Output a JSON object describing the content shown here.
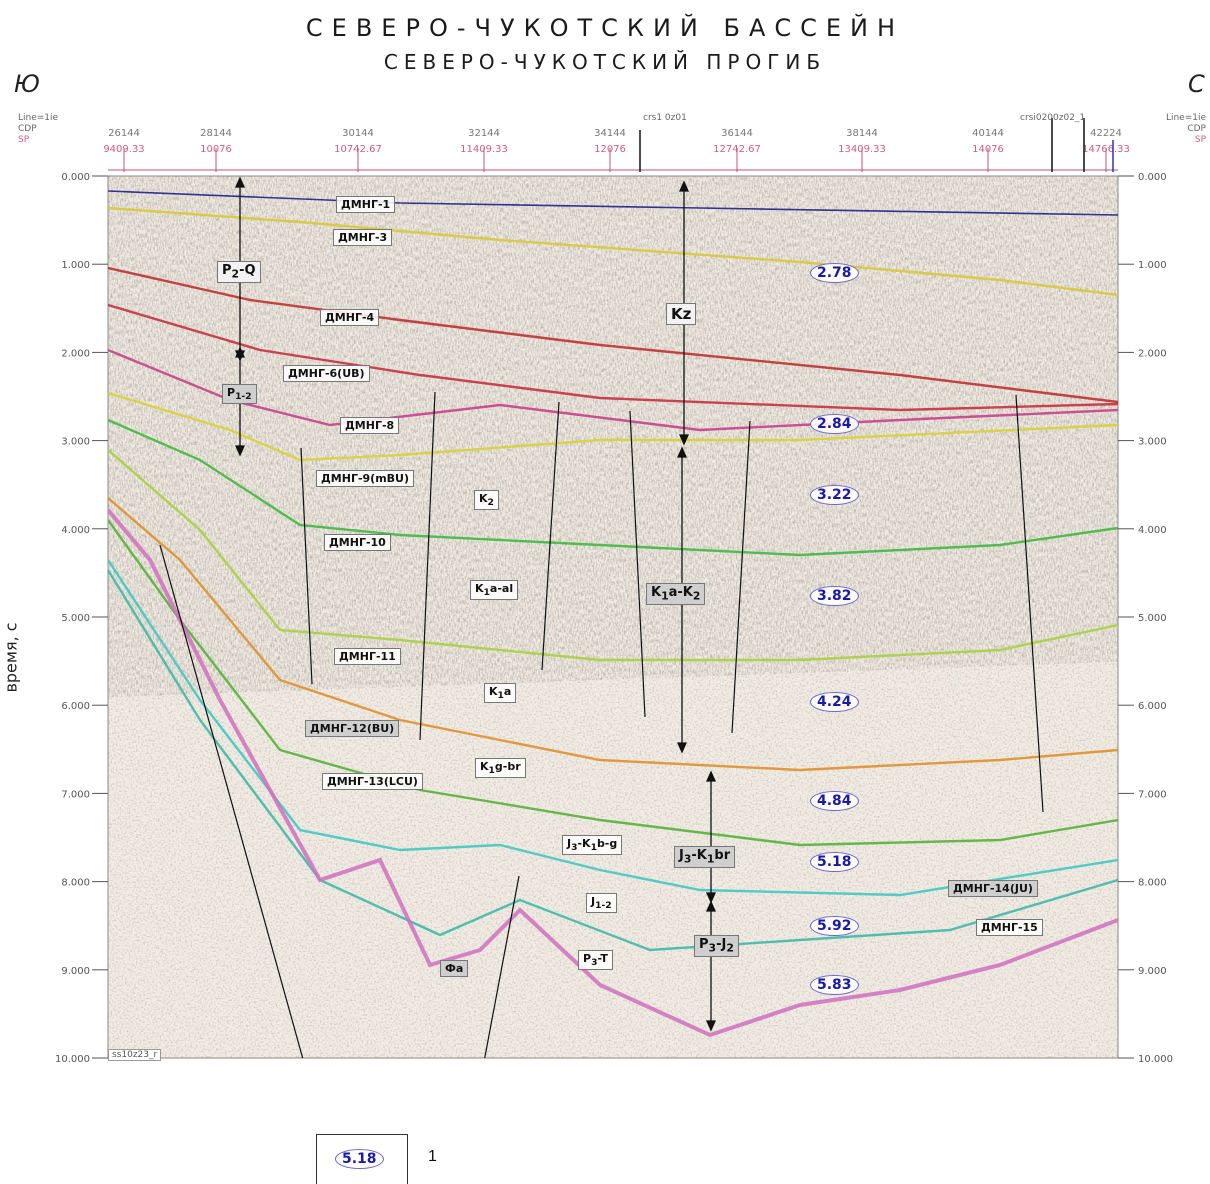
{
  "title": "СЕВЕРО-ЧУКОТСКИЙ  БАССЕЙН",
  "subtitle": "СЕВЕРО-ЧУКОТСКИЙ  ПРОГИБ",
  "dir_left": "Ю",
  "dir_right": "С",
  "ylabel": "время, с",
  "header_row_labels": {
    "left": [
      "Line=1ie",
      "CDP",
      "SP"
    ],
    "right": [
      "Line=1ie",
      "CDP",
      "SP"
    ]
  },
  "line_markers": [
    "crs1 0z01",
    "crsi0200z02_1"
  ],
  "cdp_ticks": [
    "26144",
    "28144",
    "30144",
    "32144",
    "34144",
    "36144",
    "38144",
    "40144",
    "42224"
  ],
  "sp_ticks": [
    "9409.33",
    "10076",
    "10742.67",
    "11409.33",
    "12076",
    "12742.67",
    "13409.33",
    "14076",
    "14766.33"
  ],
  "time_ticks": [
    "0.000",
    "1.000",
    "2.000",
    "3.000",
    "4.000",
    "5.000",
    "6.000",
    "7.000",
    "8.000",
    "9.000",
    "10.000"
  ],
  "horizons": [
    {
      "name": "ДМНГ-1",
      "color": "#1e1e8c"
    },
    {
      "name": "ДМНГ-3",
      "color": "#d8c838"
    },
    {
      "name": "ДМНГ-4",
      "color": "#c03030"
    },
    {
      "name": "ДМНГ-6(UB)",
      "color": "#c83040"
    },
    {
      "name": "ДМНГ-8",
      "color": "#c8408c"
    },
    {
      "name": "ДМНГ-9(mBU)",
      "color": "#d8d038"
    },
    {
      "name": "ДМНГ-10",
      "color": "#40b840"
    },
    {
      "name": "ДМНГ-11",
      "color": "#a8d040"
    },
    {
      "name": "ДМНГ-12(BU)",
      "color": "#e0902c"
    },
    {
      "name": "ДМНГ-13(LCU)",
      "color": "#58b038"
    },
    {
      "name": "ДМНГ-14(JU)",
      "color": "#40c8c0"
    },
    {
      "name": "ДМНГ-15",
      "color": "#40b8a8"
    }
  ],
  "basement_color": "#d070c0",
  "units": {
    "p2q_main": "P",
    "p2q_sub": "2",
    "p2q_tail": "-Q",
    "p12_main": "P",
    "p12_sub": "1-2",
    "kz": "Kz",
    "k2_main": "K",
    "k2_sub": "2",
    "k1aal_main": "K",
    "k1aal_sub": "1",
    "k1aal_tail": "a-al",
    "k1ak2_main": "K",
    "k1ak2_sub": "1",
    "k1ak2_mid": "a-K",
    "k1ak2_sub2": "2",
    "k1a_main": "K",
    "k1a_sub": "1",
    "k1a_tail": "a",
    "k1gbr_main": "K",
    "k1gbr_sub": "1",
    "k1gbr_tail": "g-br",
    "j3k1bg_main": "J",
    "j3k1bg_sub": "3",
    "j3k1bg_mid": "-K",
    "j3k1bg_sub2": "1",
    "j3k1bg_tail": "b-g",
    "j3k1br_main": "J",
    "j3k1br_sub": "3",
    "j3k1br_mid": "-K",
    "j3k1br_sub2": "1",
    "j3k1br_tail": "br",
    "j12_main": "J",
    "j12_sub": "1-2",
    "p3t_main": "P",
    "p3t_sub": "3",
    "p3t_tail": "-T",
    "p3j2_main": "P",
    "p3j2_sub": "3",
    "p3j2_mid": "-J",
    "p3j2_sub2": "2",
    "fa": "Фа"
  },
  "velocities": [
    "2.78",
    "2.84",
    "3.22",
    "3.82",
    "4.24",
    "4.84",
    "5.18",
    "5.92",
    "5.83"
  ],
  "stamp": "ss10z23_r",
  "legend": {
    "value": "5.18",
    "number": "1"
  }
}
